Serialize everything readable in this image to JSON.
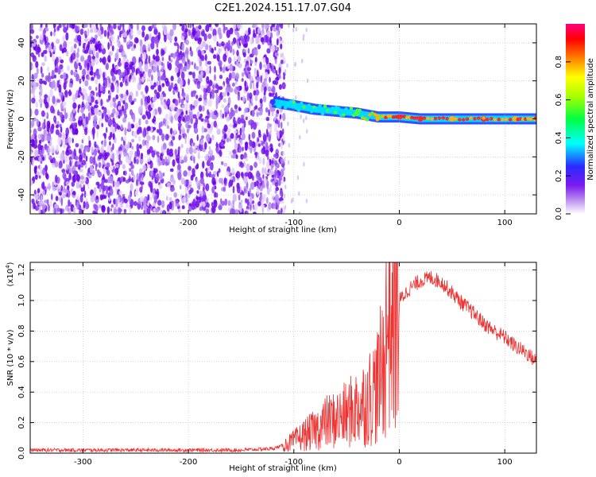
{
  "figure_title": "C2E1.2024.151.17.07.G04",
  "chart_data": [
    {
      "type": "heatmap",
      "panel": "spectrogram",
      "xlabel": "Height of straight line (km)",
      "ylabel": "Frequency (Hz)",
      "xlim": [
        -350,
        130
      ],
      "ylim": [
        -50,
        50
      ],
      "xticks": [
        -300,
        -200,
        -100,
        0,
        100
      ],
      "xtick_labels": [
        "-300",
        "-200",
        "-100",
        "0",
        "100"
      ],
      "yticks": [
        -40,
        -20,
        0,
        20,
        40
      ],
      "ytick_labels": [
        "-40",
        "-20",
        "0",
        "20",
        "40"
      ],
      "noise_region": {
        "x_range": [
          -350,
          -115
        ],
        "description": "diffuse low amplitude purple noise"
      },
      "signal_track": [
        {
          "x": -120,
          "freq": 9,
          "amplitude": 0.45
        },
        {
          "x": -100,
          "freq": 7,
          "amplitude": 0.55
        },
        {
          "x": -80,
          "freq": 5,
          "amplitude": 0.6
        },
        {
          "x": -60,
          "freq": 4,
          "amplitude": 0.6
        },
        {
          "x": -40,
          "freq": 3,
          "amplitude": 0.65
        },
        {
          "x": -20,
          "freq": 1,
          "amplitude": 0.8
        },
        {
          "x": 0,
          "freq": 1,
          "amplitude": 0.9
        },
        {
          "x": 20,
          "freq": 0,
          "amplitude": 0.9
        },
        {
          "x": 50,
          "freq": 0,
          "amplitude": 0.85
        },
        {
          "x": 80,
          "freq": 0,
          "amplitude": 0.9
        },
        {
          "x": 110,
          "freq": 0,
          "amplitude": 0.85
        },
        {
          "x": 130,
          "freq": 0,
          "amplitude": 0.8
        }
      ],
      "grid": true
    },
    {
      "type": "colorbar",
      "label": "Normalized spectral amplitude",
      "range": [
        0,
        1
      ],
      "ticks": [
        0.0,
        0.2,
        0.4,
        0.6,
        0.8
      ],
      "tick_labels": [
        "0.0",
        "0.2",
        "0.4",
        "0.6",
        "0.8"
      ],
      "colors": [
        "#ffffff",
        "#c6a2f0",
        "#7a1cf0",
        "#2020ff",
        "#00ffff",
        "#00ff00",
        "#ffff00",
        "#ff8000",
        "#ff0000",
        "#ff0080"
      ]
    },
    {
      "type": "line",
      "panel": "snr",
      "xlabel": "Height of straight line (km)",
      "ylabel": "SNR (10 * v/v)",
      "y_multiplier": "(x10",
      "y_multiplier_exp": "4",
      "y_multiplier_close": ")",
      "xlim": [
        -350,
        130
      ],
      "ylim": [
        0,
        1.25
      ],
      "xticks": [
        -300,
        -200,
        -100,
        0,
        100
      ],
      "xtick_labels": [
        "-300",
        "-200",
        "-100",
        "0",
        "100"
      ],
      "yticks": [
        0.0,
        0.2,
        0.4,
        0.6,
        0.8,
        1.0,
        1.2
      ],
      "ytick_labels": [
        "0.0",
        "0.2",
        "0.4",
        "0.6",
        "0.8",
        "1.0",
        "1.2"
      ],
      "color": "#ee3333",
      "x": [
        -350,
        -300,
        -250,
        -200,
        -150,
        -120,
        -110,
        -100,
        -90,
        -80,
        -70,
        -60,
        -50,
        -40,
        -30,
        -20,
        -15,
        -10,
        -5,
        0,
        10,
        20,
        30,
        40,
        50,
        60,
        70,
        80,
        90,
        100,
        110,
        120,
        130
      ],
      "y": [
        0.02,
        0.02,
        0.02,
        0.02,
        0.02,
        0.03,
        0.05,
        0.08,
        0.12,
        0.15,
        0.2,
        0.22,
        0.25,
        0.3,
        0.35,
        0.45,
        0.6,
        0.95,
        0.9,
        1.0,
        1.08,
        1.13,
        1.15,
        1.12,
        1.05,
        0.98,
        0.92,
        0.85,
        0.8,
        0.76,
        0.7,
        0.66,
        0.6
      ],
      "grid": true
    }
  ]
}
